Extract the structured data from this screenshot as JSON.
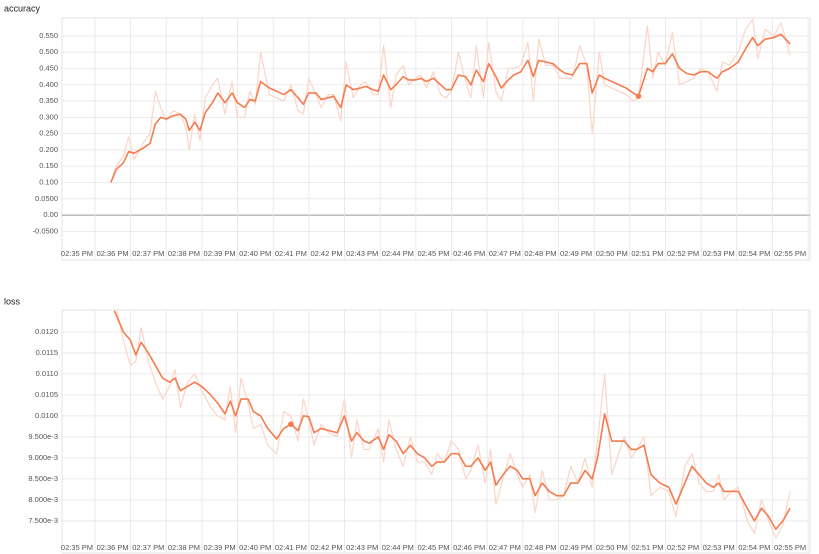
{
  "chart_data": [
    {
      "type": "line",
      "title": "accuracy",
      "x": [
        35.95,
        36.1,
        36.3,
        36.45,
        36.6,
        36.85,
        37.05,
        37.2,
        37.35,
        37.5,
        37.7,
        37.9,
        38.05,
        38.15,
        38.3,
        38.45,
        38.6,
        38.8,
        38.95,
        39.15,
        39.35,
        39.5,
        39.7,
        39.85,
        40.0,
        40.15,
        40.4,
        40.6,
        40.8,
        41.0,
        41.2,
        41.35,
        41.5,
        41.7,
        41.85,
        42.05,
        42.2,
        42.4,
        42.55,
        42.75,
        42.95,
        43.1,
        43.3,
        43.45,
        43.6,
        43.8,
        43.95,
        44.15,
        44.3,
        44.5,
        44.65,
        44.8,
        45.0,
        45.2,
        45.35,
        45.5,
        45.7,
        45.9,
        46.05,
        46.2,
        46.4,
        46.55,
        46.75,
        46.9,
        47.1,
        47.25,
        47.45,
        47.65,
        47.8,
        47.95,
        48.15,
        48.35,
        48.55,
        48.7,
        48.9,
        49.1,
        49.3,
        49.45,
        49.65,
        49.8,
        50.0,
        50.2,
        50.4,
        50.6,
        50.75,
        51.0,
        51.15,
        51.3,
        51.5,
        51.7,
        51.9,
        52.1,
        52.3,
        52.5,
        52.7,
        52.95,
        53.1,
        53.3,
        53.55,
        53.75,
        53.95,
        54.1,
        54.3,
        54.55,
        54.75,
        55.0
      ],
      "series": [
        {
          "color": "#fbd5c6",
          "values": [
            0.1,
            0.15,
            0.18,
            0.24,
            0.17,
            0.22,
            0.25,
            0.38,
            0.33,
            0.29,
            0.32,
            0.31,
            0.27,
            0.2,
            0.31,
            0.23,
            0.36,
            0.4,
            0.42,
            0.31,
            0.41,
            0.3,
            0.3,
            0.38,
            0.34,
            0.5,
            0.37,
            0.36,
            0.35,
            0.4,
            0.32,
            0.31,
            0.42,
            0.37,
            0.33,
            0.37,
            0.37,
            0.29,
            0.47,
            0.36,
            0.4,
            0.41,
            0.37,
            0.37,
            0.52,
            0.33,
            0.43,
            0.46,
            0.4,
            0.42,
            0.43,
            0.39,
            0.44,
            0.37,
            0.36,
            0.38,
            0.5,
            0.41,
            0.36,
            0.52,
            0.36,
            0.53,
            0.38,
            0.35,
            0.45,
            0.45,
            0.46,
            0.53,
            0.35,
            0.54,
            0.46,
            0.46,
            0.42,
            0.42,
            0.42,
            0.52,
            0.46,
            0.25,
            0.5,
            0.4,
            0.39,
            0.38,
            0.37,
            0.35,
            0.36,
            0.58,
            0.42,
            0.5,
            0.46,
            0.56,
            0.4,
            0.41,
            0.42,
            0.45,
            0.44,
            0.38,
            0.47,
            0.46,
            0.5,
            0.57,
            0.6,
            0.48,
            0.57,
            0.55,
            0.59,
            0.49
          ]
        },
        {
          "color": "#f57c4f",
          "highlight": 84,
          "values": [
            0.1,
            0.14,
            0.16,
            0.195,
            0.19,
            0.205,
            0.22,
            0.28,
            0.3,
            0.295,
            0.305,
            0.31,
            0.295,
            0.26,
            0.285,
            0.26,
            0.315,
            0.345,
            0.375,
            0.345,
            0.375,
            0.345,
            0.33,
            0.355,
            0.35,
            0.41,
            0.39,
            0.38,
            0.37,
            0.385,
            0.36,
            0.34,
            0.375,
            0.375,
            0.355,
            0.36,
            0.365,
            0.33,
            0.4,
            0.385,
            0.39,
            0.395,
            0.385,
            0.38,
            0.43,
            0.385,
            0.4,
            0.425,
            0.415,
            0.415,
            0.42,
            0.41,
            0.42,
            0.4,
            0.385,
            0.385,
            0.43,
            0.425,
            0.4,
            0.445,
            0.41,
            0.465,
            0.425,
            0.39,
            0.415,
            0.43,
            0.44,
            0.475,
            0.425,
            0.475,
            0.47,
            0.465,
            0.445,
            0.435,
            0.43,
            0.465,
            0.465,
            0.375,
            0.43,
            0.42,
            0.41,
            0.4,
            0.39,
            0.375,
            0.365,
            0.45,
            0.44,
            0.465,
            0.465,
            0.495,
            0.45,
            0.435,
            0.43,
            0.44,
            0.44,
            0.42,
            0.44,
            0.45,
            0.47,
            0.51,
            0.545,
            0.52,
            0.54,
            0.545,
            0.555,
            0.525
          ]
        }
      ],
      "xlim": [
        34.58,
        55.56
      ],
      "xticks": [
        {
          "value": 35,
          "label": "02:35 PM"
        },
        {
          "value": 36,
          "label": "02:36 PM"
        },
        {
          "value": 37,
          "label": "02:37 PM"
        },
        {
          "value": 38,
          "label": "02:38 PM"
        },
        {
          "value": 39,
          "label": "02:39 PM"
        },
        {
          "value": 40,
          "label": "02:40 PM"
        },
        {
          "value": 41,
          "label": "02:41 PM"
        },
        {
          "value": 42,
          "label": "02:42 PM"
        },
        {
          "value": 43,
          "label": "02:43 PM"
        },
        {
          "value": 44,
          "label": "02:44 PM"
        },
        {
          "value": 45,
          "label": "02:45 PM"
        },
        {
          "value": 46,
          "label": "02:46 PM"
        },
        {
          "value": 47,
          "label": "02:47 PM"
        },
        {
          "value": 48,
          "label": "02:48 PM"
        },
        {
          "value": 49,
          "label": "02:49 PM"
        },
        {
          "value": 50,
          "label": "02:50 PM"
        },
        {
          "value": 51,
          "label": "02:51 PM"
        },
        {
          "value": 52,
          "label": "02:52 PM"
        },
        {
          "value": 53,
          "label": "02:53 PM"
        },
        {
          "value": 54,
          "label": "02:54 PM"
        },
        {
          "value": 55,
          "label": "02:55 PM"
        }
      ],
      "ylim": [
        -0.098,
        0.605
      ],
      "yticks": [
        {
          "value": -0.05,
          "label": "-0.0500"
        },
        {
          "value": 0,
          "label": "0.00"
        },
        {
          "value": 0.05,
          "label": "0.0500"
        },
        {
          "value": 0.1,
          "label": "0.100"
        },
        {
          "value": 0.15,
          "label": "0.150"
        },
        {
          "value": 0.2,
          "label": "0.200"
        },
        {
          "value": 0.25,
          "label": "0.250"
        },
        {
          "value": 0.3,
          "label": "0.300"
        },
        {
          "value": 0.35,
          "label": "0.350"
        },
        {
          "value": 0.4,
          "label": "0.400"
        },
        {
          "value": 0.45,
          "label": "0.450"
        },
        {
          "value": 0.5,
          "label": "0.500"
        },
        {
          "value": 0.55,
          "label": "0.550"
        }
      ],
      "grid": true
    },
    {
      "type": "line",
      "title": "loss",
      "x": [
        36.05,
        36.3,
        36.5,
        36.65,
        36.8,
        37.0,
        37.2,
        37.4,
        37.6,
        37.75,
        37.9,
        38.1,
        38.3,
        38.5,
        38.75,
        38.95,
        39.15,
        39.3,
        39.45,
        39.6,
        39.8,
        39.95,
        40.15,
        40.35,
        40.6,
        40.8,
        41.0,
        41.2,
        41.35,
        41.5,
        41.65,
        41.85,
        42.05,
        42.3,
        42.5,
        42.7,
        42.85,
        43.05,
        43.2,
        43.45,
        43.6,
        43.75,
        43.95,
        44.15,
        44.35,
        44.55,
        44.75,
        44.95,
        45.1,
        45.3,
        45.5,
        45.7,
        45.9,
        46.05,
        46.25,
        46.45,
        46.6,
        46.75,
        46.95,
        47.15,
        47.35,
        47.5,
        47.7,
        47.85,
        48.05,
        48.25,
        48.45,
        48.65,
        48.85,
        49.05,
        49.25,
        49.45,
        49.6,
        49.8,
        50.0,
        50.35,
        50.55,
        50.7,
        50.9,
        51.1,
        51.35,
        51.6,
        51.8,
        52.05,
        52.25,
        52.45,
        52.65,
        52.85,
        53.0,
        53.15,
        53.35,
        53.55,
        53.8,
        54.0,
        54.2,
        54.4,
        54.6,
        54.8,
        55.0
      ],
      "series": [
        {
          "color": "#fbd5c6",
          "values": [
            0.0128,
            0.0118,
            0.0112,
            0.0113,
            0.0121,
            0.0113,
            0.0108,
            0.0104,
            0.0107,
            0.0111,
            0.0102,
            0.0108,
            0.011,
            0.0106,
            0.0102,
            0.01,
            0.0099,
            0.0107,
            0.0096,
            0.0109,
            0.0103,
            0.0097,
            0.0098,
            0.0093,
            0.0091,
            0.0101,
            0.01,
            0.0094,
            0.0104,
            0.0099,
            0.0093,
            0.0098,
            0.0096,
            0.0095,
            0.0104,
            0.009,
            0.0099,
            0.0092,
            0.0092,
            0.0097,
            0.0089,
            0.0099,
            0.0092,
            0.0088,
            0.0095,
            0.0089,
            0.0089,
            0.0086,
            0.0091,
            0.0089,
            0.0094,
            0.0092,
            0.0085,
            0.0087,
            0.0093,
            0.0084,
            0.0092,
            0.0079,
            0.0085,
            0.0091,
            0.0086,
            0.0083,
            0.0086,
            0.0077,
            0.0087,
            0.008,
            0.008,
            0.0081,
            0.0088,
            0.0084,
            0.009,
            0.0083,
            0.0094,
            0.011,
            0.0086,
            0.0095,
            0.009,
            0.0092,
            0.0095,
            0.0081,
            0.0083,
            0.0082,
            0.0076,
            0.0088,
            0.0091,
            0.0084,
            0.0082,
            0.0082,
            0.0086,
            0.008,
            0.0082,
            0.0083,
            0.0075,
            0.0072,
            0.008,
            0.0075,
            0.0071,
            0.0074,
            0.0082
          ]
        },
        {
          "color": "#f57c4f",
          "highlight": 26,
          "values": [
            0.0125,
            0.012,
            0.0118,
            0.01145,
            0.01175,
            0.0115,
            0.0112,
            0.0109,
            0.0108,
            0.0109,
            0.0106,
            0.0107,
            0.0108,
            0.0107,
            0.0105,
            0.0103,
            0.01005,
            0.01035,
            0.01,
            0.0104,
            0.0104,
            0.0101,
            0.01,
            0.0097,
            0.00945,
            0.0097,
            0.0098,
            0.00965,
            0.01,
            0.00998,
            0.0096,
            0.0097,
            0.00965,
            0.0096,
            0.01,
            0.0094,
            0.0096,
            0.0094,
            0.00935,
            0.0095,
            0.0092,
            0.00955,
            0.0094,
            0.0091,
            0.0093,
            0.0091,
            0.009,
            0.0088,
            0.0089,
            0.0089,
            0.0091,
            0.0091,
            0.0088,
            0.0088,
            0.009,
            0.0087,
            0.0089,
            0.00835,
            0.0086,
            0.0088,
            0.0087,
            0.0085,
            0.0085,
            0.0081,
            0.0084,
            0.0082,
            0.0081,
            0.0081,
            0.0084,
            0.0084,
            0.0087,
            0.0085,
            0.009,
            0.01005,
            0.0094,
            0.0094,
            0.0092,
            0.0092,
            0.0093,
            0.0086,
            0.0084,
            0.0083,
            0.0079,
            0.0084,
            0.0088,
            0.0086,
            0.0084,
            0.0083,
            0.0084,
            0.0082,
            0.0082,
            0.0082,
            0.0078,
            0.0075,
            0.0078,
            0.0076,
            0.0073,
            0.0075,
            0.0078
          ]
        }
      ],
      "xlim": [
        34.58,
        55.56
      ],
      "xticks": [
        {
          "value": 35,
          "label": "02:35 PM"
        },
        {
          "value": 36,
          "label": "02:36 PM"
        },
        {
          "value": 37,
          "label": "02:37 PM"
        },
        {
          "value": 38,
          "label": "02:38 PM"
        },
        {
          "value": 39,
          "label": "02:39 PM"
        },
        {
          "value": 40,
          "label": "02:40 PM"
        },
        {
          "value": 41,
          "label": "02:41 PM"
        },
        {
          "value": 42,
          "label": "02:42 PM"
        },
        {
          "value": 43,
          "label": "02:43 PM"
        },
        {
          "value": 44,
          "label": "02:44 PM"
        },
        {
          "value": 45,
          "label": "02:45 PM"
        },
        {
          "value": 46,
          "label": "02:46 PM"
        },
        {
          "value": 47,
          "label": "02:47 PM"
        },
        {
          "value": 48,
          "label": "02:48 PM"
        },
        {
          "value": 49,
          "label": "02:49 PM"
        },
        {
          "value": 50,
          "label": "02:50 PM"
        },
        {
          "value": 51,
          "label": "02:51 PM"
        },
        {
          "value": 52,
          "label": "02:52 PM"
        },
        {
          "value": 53,
          "label": "02:53 PM"
        },
        {
          "value": 54,
          "label": "02:54 PM"
        },
        {
          "value": 55,
          "label": "02:55 PM"
        }
      ],
      "ylim": [
        0.00702,
        0.01252
      ],
      "yticks": [
        {
          "value": 0.0075,
          "label": "7.500e-3"
        },
        {
          "value": 0.008,
          "label": "8.000e-3"
        },
        {
          "value": 0.0085,
          "label": "8.500e-3"
        },
        {
          "value": 0.009,
          "label": "9.000e-3"
        },
        {
          "value": 0.0095,
          "label": "9.500e-3"
        },
        {
          "value": 0.01,
          "label": "0.0100"
        },
        {
          "value": 0.0105,
          "label": "0.0105"
        },
        {
          "value": 0.011,
          "label": "0.0110"
        },
        {
          "value": 0.0115,
          "label": "0.0115"
        },
        {
          "value": 0.012,
          "label": "0.0120"
        }
      ],
      "grid": true
    }
  ]
}
